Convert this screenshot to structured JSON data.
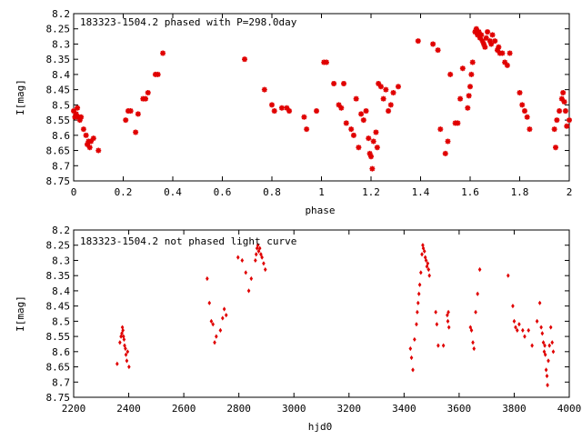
{
  "colors": {
    "series": "#e00000",
    "frame": "#000000",
    "background": "#ffffff"
  },
  "chart_data": [
    {
      "type": "scatter",
      "title": "183323-1504.2 phased with P=298.0day",
      "xlabel": "phase",
      "ylabel": "I[mag]",
      "xlim": [
        0,
        2
      ],
      "ylim": [
        8.75,
        8.2
      ],
      "y_inverted": true,
      "grid": false,
      "xticks": [
        "0",
        "0.2",
        "0.4",
        "0.6",
        "0.8",
        "1",
        "1.2",
        "1.4",
        "1.6",
        "1.8",
        "2"
      ],
      "yticks": [
        "8.2",
        "8.25",
        "8.3",
        "8.35",
        "8.4",
        "8.45",
        "8.5",
        "8.55",
        "8.6",
        "8.65",
        "8.7",
        "8.75"
      ],
      "points": [
        [
          0.0,
          8.52
        ],
        [
          0.005,
          8.54
        ],
        [
          0.01,
          8.53
        ],
        [
          0.015,
          8.51
        ],
        [
          0.02,
          8.54
        ],
        [
          0.025,
          8.55
        ],
        [
          0.03,
          8.54
        ],
        [
          0.04,
          8.58
        ],
        [
          0.05,
          8.6
        ],
        [
          0.055,
          8.63
        ],
        [
          0.06,
          8.62
        ],
        [
          0.065,
          8.64
        ],
        [
          0.07,
          8.62
        ],
        [
          0.08,
          8.61
        ],
        [
          0.1,
          8.65
        ],
        [
          0.21,
          8.55
        ],
        [
          0.22,
          8.52
        ],
        [
          0.23,
          8.52
        ],
        [
          0.25,
          8.59
        ],
        [
          0.26,
          8.53
        ],
        [
          0.28,
          8.48
        ],
        [
          0.29,
          8.48
        ],
        [
          0.3,
          8.46
        ],
        [
          0.33,
          8.4
        ],
        [
          0.34,
          8.4
        ],
        [
          0.36,
          8.33
        ],
        [
          0.69,
          8.35
        ],
        [
          0.77,
          8.45
        ],
        [
          0.8,
          8.5
        ],
        [
          0.81,
          8.52
        ],
        [
          0.84,
          8.51
        ],
        [
          0.86,
          8.51
        ],
        [
          0.87,
          8.52
        ],
        [
          0.93,
          8.54
        ],
        [
          0.94,
          8.58
        ],
        [
          0.98,
          8.52
        ],
        [
          1.01,
          8.36
        ],
        [
          1.02,
          8.36
        ],
        [
          1.05,
          8.43
        ],
        [
          1.07,
          8.5
        ],
        [
          1.08,
          8.51
        ],
        [
          1.09,
          8.43
        ],
        [
          1.1,
          8.56
        ],
        [
          1.12,
          8.58
        ],
        [
          1.13,
          8.6
        ],
        [
          1.14,
          8.48
        ],
        [
          1.15,
          8.64
        ],
        [
          1.16,
          8.53
        ],
        [
          1.17,
          8.55
        ],
        [
          1.18,
          8.52
        ],
        [
          1.19,
          8.61
        ],
        [
          1.195,
          8.66
        ],
        [
          1.2,
          8.67
        ],
        [
          1.205,
          8.71
        ],
        [
          1.21,
          8.62
        ],
        [
          1.22,
          8.59
        ],
        [
          1.225,
          8.64
        ],
        [
          1.23,
          8.43
        ],
        [
          1.24,
          8.44
        ],
        [
          1.25,
          8.48
        ],
        [
          1.26,
          8.45
        ],
        [
          1.27,
          8.52
        ],
        [
          1.28,
          8.5
        ],
        [
          1.29,
          8.46
        ],
        [
          1.31,
          8.44
        ],
        [
          1.39,
          8.29
        ],
        [
          1.45,
          8.3
        ],
        [
          1.47,
          8.32
        ],
        [
          1.48,
          8.58
        ],
        [
          1.5,
          8.66
        ],
        [
          1.51,
          8.62
        ],
        [
          1.52,
          8.4
        ],
        [
          1.54,
          8.56
        ],
        [
          1.55,
          8.56
        ],
        [
          1.56,
          8.48
        ],
        [
          1.57,
          8.38
        ],
        [
          1.59,
          8.51
        ],
        [
          1.595,
          8.47
        ],
        [
          1.6,
          8.44
        ],
        [
          1.605,
          8.4
        ],
        [
          1.61,
          8.36
        ],
        [
          1.62,
          8.26
        ],
        [
          1.625,
          8.25
        ],
        [
          1.63,
          8.27
        ],
        [
          1.635,
          8.26
        ],
        [
          1.64,
          8.28
        ],
        [
          1.645,
          8.27
        ],
        [
          1.65,
          8.29
        ],
        [
          1.655,
          8.3
        ],
        [
          1.66,
          8.31
        ],
        [
          1.665,
          8.28
        ],
        [
          1.67,
          8.26
        ],
        [
          1.68,
          8.29
        ],
        [
          1.685,
          8.3
        ],
        [
          1.69,
          8.27
        ],
        [
          1.7,
          8.29
        ],
        [
          1.71,
          8.32
        ],
        [
          1.715,
          8.31
        ],
        [
          1.72,
          8.33
        ],
        [
          1.73,
          8.33
        ],
        [
          1.74,
          8.36
        ],
        [
          1.75,
          8.37
        ],
        [
          1.76,
          8.33
        ],
        [
          1.8,
          8.46
        ],
        [
          1.81,
          8.5
        ],
        [
          1.82,
          8.52
        ],
        [
          1.83,
          8.54
        ],
        [
          1.84,
          8.58
        ],
        [
          1.94,
          8.58
        ],
        [
          1.945,
          8.64
        ],
        [
          1.95,
          8.55
        ],
        [
          1.96,
          8.52
        ],
        [
          1.97,
          8.48
        ],
        [
          1.975,
          8.46
        ],
        [
          1.98,
          8.49
        ],
        [
          1.985,
          8.52
        ],
        [
          1.99,
          8.57
        ],
        [
          2.0,
          8.55
        ]
      ]
    },
    {
      "type": "scatter",
      "title": "183323-1504.2 not phased light curve",
      "xlabel": "hjd0",
      "ylabel": "I[mag]",
      "xlim": [
        2200,
        4000
      ],
      "ylim": [
        8.75,
        8.2
      ],
      "y_inverted": true,
      "grid": false,
      "xticks": [
        "2200",
        "2400",
        "2600",
        "2800",
        "3000",
        "3200",
        "3400",
        "3600",
        "3800",
        "4000"
      ],
      "yticks": [
        "8.2",
        "8.25",
        "8.3",
        "8.35",
        "8.4",
        "8.45",
        "8.5",
        "8.55",
        "8.6",
        "8.65",
        "8.7",
        "8.75"
      ],
      "points": [
        [
          2358,
          8.64
        ],
        [
          2368,
          8.57
        ],
        [
          2372,
          8.55
        ],
        [
          2375,
          8.54
        ],
        [
          2377,
          8.52
        ],
        [
          2379,
          8.53
        ],
        [
          2381,
          8.55
        ],
        [
          2383,
          8.56
        ],
        [
          2385,
          8.58
        ],
        [
          2388,
          8.59
        ],
        [
          2390,
          8.61
        ],
        [
          2393,
          8.63
        ],
        [
          2396,
          8.6
        ],
        [
          2401,
          8.65
        ],
        [
          2685,
          8.36
        ],
        [
          2693,
          8.44
        ],
        [
          2700,
          8.5
        ],
        [
          2706,
          8.51
        ],
        [
          2712,
          8.57
        ],
        [
          2718,
          8.55
        ],
        [
          2733,
          8.53
        ],
        [
          2741,
          8.49
        ],
        [
          2747,
          8.46
        ],
        [
          2754,
          8.48
        ],
        [
          2797,
          8.29
        ],
        [
          2812,
          8.3
        ],
        [
          2825,
          8.34
        ],
        [
          2836,
          8.4
        ],
        [
          2845,
          8.36
        ],
        [
          2860,
          8.3
        ],
        [
          2863,
          8.28
        ],
        [
          2866,
          8.26
        ],
        [
          2869,
          8.25
        ],
        [
          2872,
          8.27
        ],
        [
          2876,
          8.26
        ],
        [
          2880,
          8.28
        ],
        [
          2884,
          8.29
        ],
        [
          2890,
          8.31
        ],
        [
          2896,
          8.33
        ],
        [
          3423,
          8.59
        ],
        [
          3427,
          8.62
        ],
        [
          3432,
          8.66
        ],
        [
          3438,
          8.56
        ],
        [
          3445,
          8.51
        ],
        [
          3448,
          8.47
        ],
        [
          3451,
          8.44
        ],
        [
          3454,
          8.41
        ],
        [
          3457,
          8.38
        ],
        [
          3461,
          8.34
        ],
        [
          3465,
          8.28
        ],
        [
          3468,
          8.25
        ],
        [
          3470,
          8.26
        ],
        [
          3474,
          8.27
        ],
        [
          3477,
          8.29
        ],
        [
          3480,
          8.3
        ],
        [
          3483,
          8.32
        ],
        [
          3486,
          8.31
        ],
        [
          3489,
          8.33
        ],
        [
          3492,
          8.35
        ],
        [
          3515,
          8.47
        ],
        [
          3519,
          8.51
        ],
        [
          3524,
          8.58
        ],
        [
          3543,
          8.58
        ],
        [
          3557,
          8.48
        ],
        [
          3559,
          8.5
        ],
        [
          3561,
          8.47
        ],
        [
          3563,
          8.52
        ],
        [
          3641,
          8.52
        ],
        [
          3645,
          8.53
        ],
        [
          3650,
          8.57
        ],
        [
          3654,
          8.59
        ],
        [
          3660,
          8.47
        ],
        [
          3667,
          8.41
        ],
        [
          3675,
          8.33
        ],
        [
          3778,
          8.35
        ],
        [
          3795,
          8.45
        ],
        [
          3800,
          8.5
        ],
        [
          3805,
          8.52
        ],
        [
          3811,
          8.53
        ],
        [
          3818,
          8.51
        ],
        [
          3831,
          8.53
        ],
        [
          3838,
          8.55
        ],
        [
          3852,
          8.53
        ],
        [
          3865,
          8.58
        ],
        [
          3883,
          8.5
        ],
        [
          3893,
          8.44
        ],
        [
          3898,
          8.52
        ],
        [
          3902,
          8.54
        ],
        [
          3906,
          8.57
        ],
        [
          3909,
          8.6
        ],
        [
          3911,
          8.58
        ],
        [
          3913,
          8.61
        ],
        [
          3916,
          8.66
        ],
        [
          3919,
          8.68
        ],
        [
          3921,
          8.71
        ],
        [
          3924,
          8.63
        ],
        [
          3928,
          8.58
        ],
        [
          3933,
          8.52
        ],
        [
          3938,
          8.57
        ],
        [
          3942,
          8.6
        ]
      ]
    }
  ]
}
